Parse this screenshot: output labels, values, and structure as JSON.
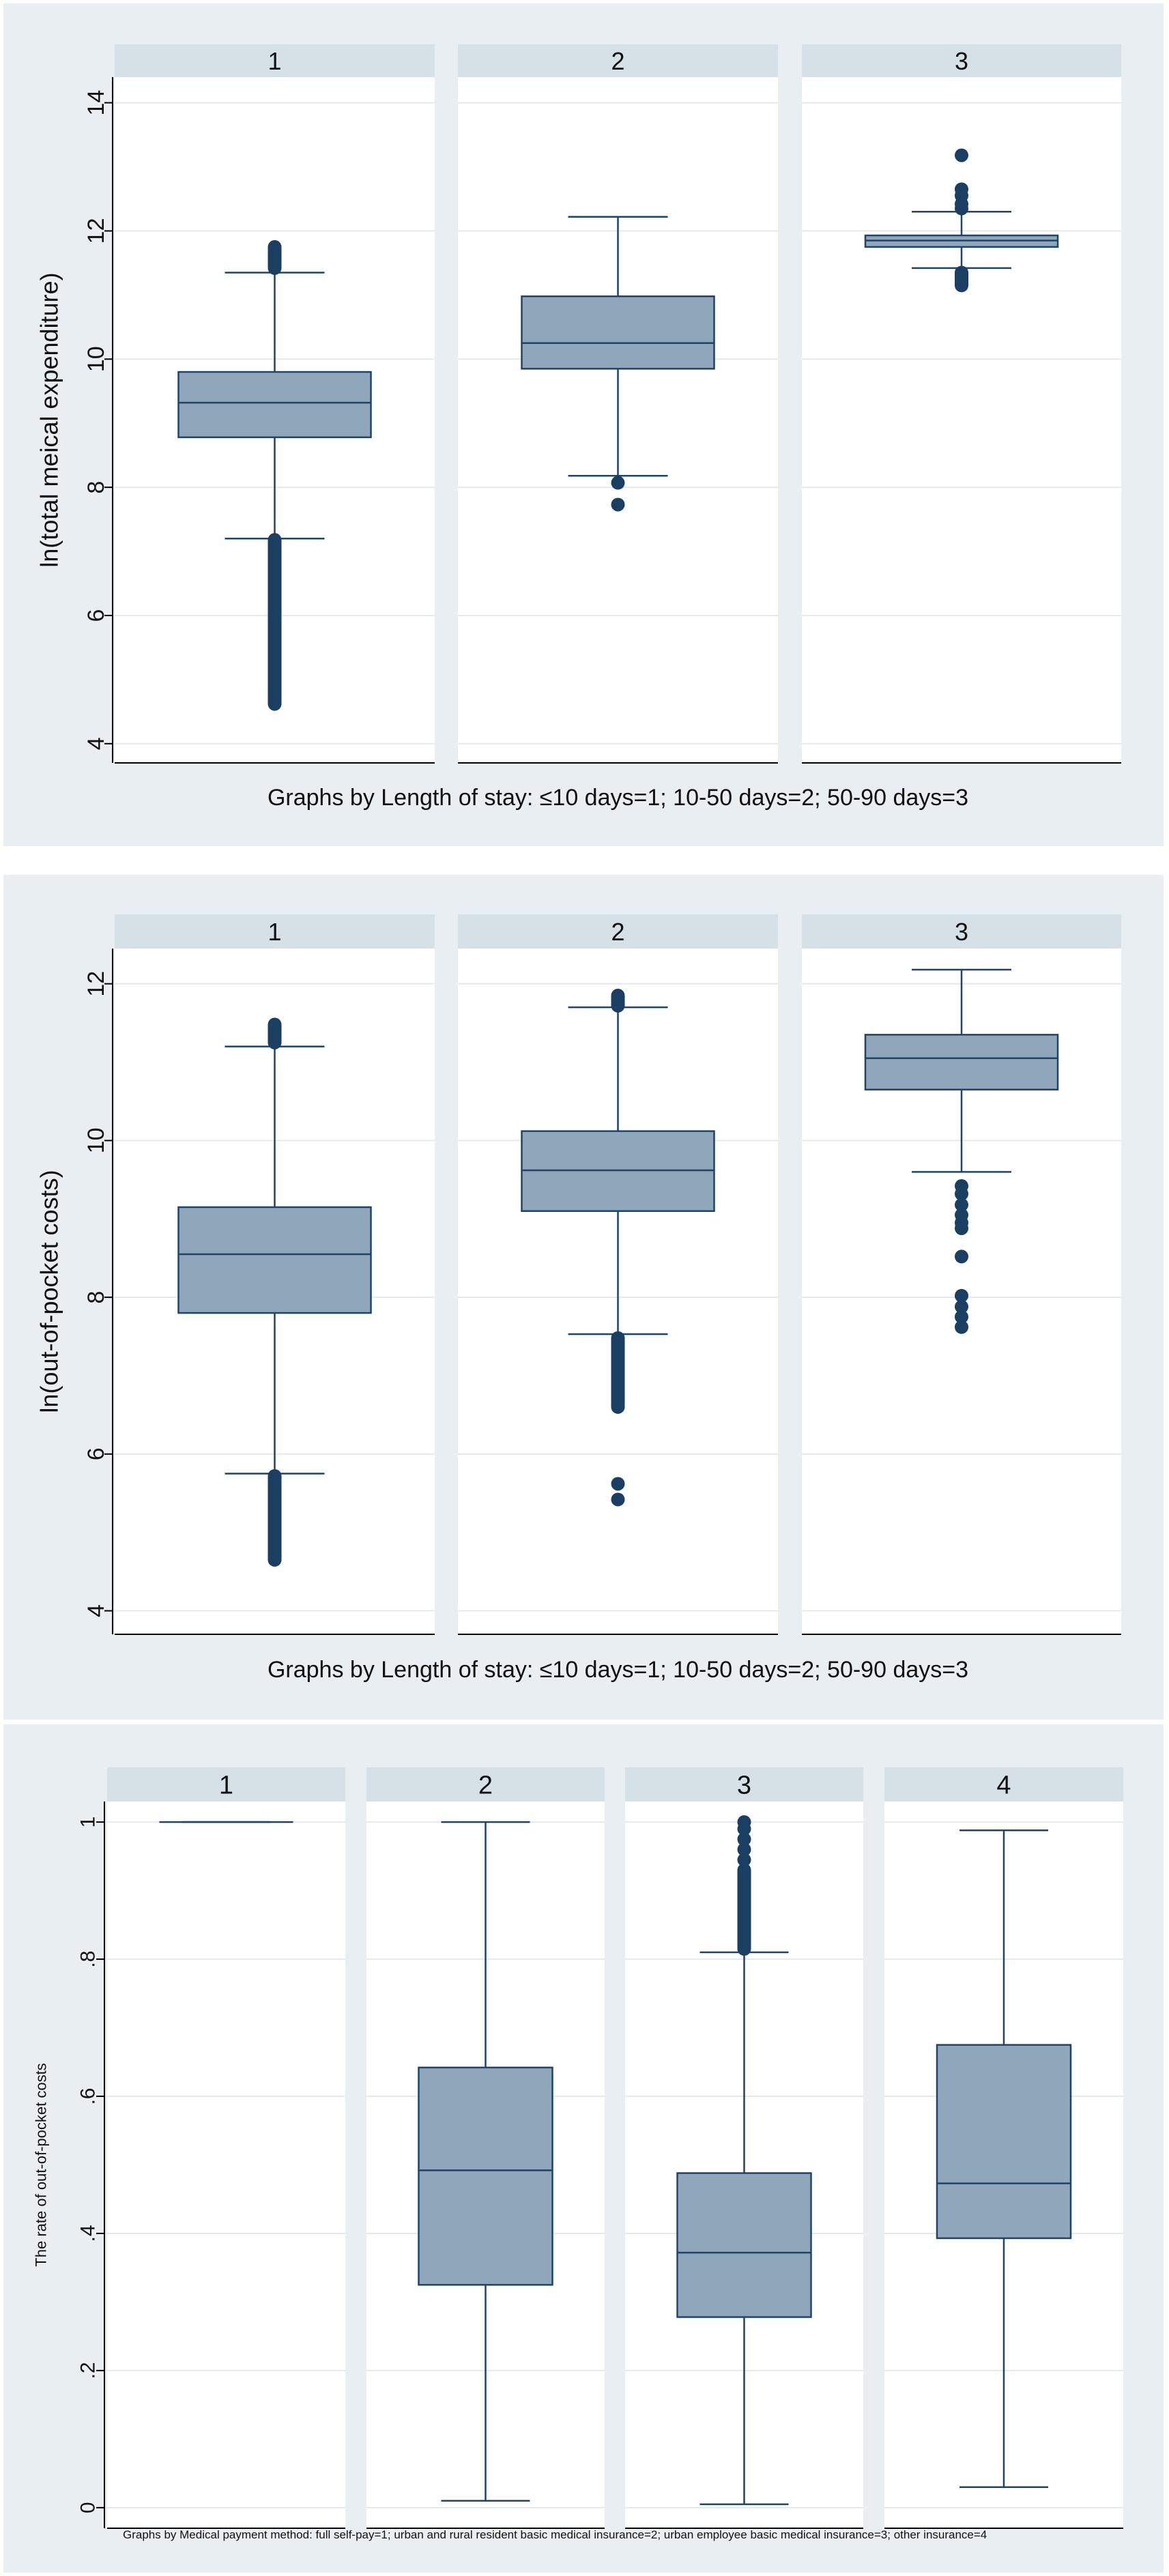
{
  "colors": {
    "panel_bg": "#e8eef2",
    "plot_bg": "#ffffff",
    "strip_bg": "#d6e0e7",
    "box_fill": "#8fa6bb",
    "box_line": "#1e4468",
    "outlier": "#1a3f63",
    "axis": "#000000",
    "grid": "#e4e9ee"
  },
  "chart_data": [
    {
      "type": "box",
      "ylabel": "ln(total meical expenditure)",
      "ylim": [
        3.7,
        14.4
      ],
      "yticks": [
        4,
        6,
        8,
        10,
        12,
        14
      ],
      "ytick_labels": [
        "4",
        "6",
        "8",
        "10",
        "12",
        "14"
      ],
      "note": "Graphs by Length of stay: ≤10 days=1; 10-50 days=2; 50-90 days=3",
      "groups": [
        {
          "label": "1",
          "whisker_low": 7.2,
          "q1": 8.78,
          "median": 9.32,
          "q3": 9.8,
          "whisker_high": 11.35,
          "outliers_low_range": [
            4.62,
            7.18
          ],
          "outliers_high_range": [
            11.42,
            11.75
          ],
          "outliers": []
        },
        {
          "label": "2",
          "whisker_low": 8.18,
          "q1": 9.85,
          "median": 10.25,
          "q3": 10.98,
          "whisker_high": 12.22,
          "outliers_low_range": null,
          "outliers_high_range": null,
          "outliers": [
            8.07,
            7.73
          ]
        },
        {
          "label": "3",
          "whisker_low": 11.42,
          "q1": 11.75,
          "median": 11.85,
          "q3": 11.93,
          "whisker_high": 12.3,
          "outliers_low_range": [
            11.15,
            11.35
          ],
          "outliers_high_range": null,
          "outliers": [
            12.35,
            12.42,
            12.55,
            12.65,
            13.18
          ]
        }
      ]
    },
    {
      "type": "box",
      "ylabel": "ln(out-of-pocket costs)",
      "ylim": [
        3.7,
        12.45
      ],
      "yticks": [
        4,
        6,
        8,
        10,
        12
      ],
      "ytick_labels": [
        "4",
        "6",
        "8",
        "10",
        "12"
      ],
      "note": "Graphs by Length of stay: ≤10 days=1; 10-50 days=2; 50-90 days=3",
      "groups": [
        {
          "label": "1",
          "whisker_low": 5.75,
          "q1": 7.8,
          "median": 8.55,
          "q3": 9.15,
          "whisker_high": 11.2,
          "outliers_low_range": [
            4.65,
            5.72
          ],
          "outliers_high_range": [
            11.25,
            11.48
          ],
          "outliers": []
        },
        {
          "label": "2",
          "whisker_low": 7.53,
          "q1": 9.1,
          "median": 9.62,
          "q3": 10.12,
          "whisker_high": 11.7,
          "outliers_low_range": [
            6.6,
            7.48
          ],
          "outliers_high_range": [
            11.72,
            11.85
          ],
          "outliers": [
            5.62,
            5.42
          ]
        },
        {
          "label": "3",
          "whisker_low": 9.6,
          "q1": 10.65,
          "median": 11.05,
          "q3": 11.35,
          "whisker_high": 12.18,
          "outliers_low_range": null,
          "outliers_high_range": null,
          "outliers": [
            9.42,
            9.32,
            9.18,
            9.05,
            8.95,
            8.88,
            8.52,
            8.02,
            7.88,
            7.75,
            7.62
          ]
        }
      ]
    },
    {
      "type": "box",
      "ylabel": "The rate of out-of-pocket costs",
      "ylim": [
        -0.03,
        1.03
      ],
      "yticks": [
        0,
        0.2,
        0.4,
        0.6,
        0.8,
        1
      ],
      "ytick_labels": [
        "0",
        ".2",
        ".4",
        ".6",
        ".8",
        "1"
      ],
      "note": "Graphs by Medical payment method: full self-pay=1; urban and rural resident basic medical insurance=2; urban employee basic medical insurance=3; other insurance=4",
      "groups": [
        {
          "label": "1",
          "whisker_low": 1,
          "q1": 1,
          "median": 1,
          "q3": 1,
          "whisker_high": 1,
          "outliers_low_range": null,
          "outliers_high_range": null,
          "outliers": []
        },
        {
          "label": "2",
          "whisker_low": 0.01,
          "q1": 0.325,
          "median": 0.492,
          "q3": 0.642,
          "whisker_high": 1.0,
          "outliers_low_range": null,
          "outliers_high_range": null,
          "outliers": []
        },
        {
          "label": "3",
          "whisker_low": 0.005,
          "q1": 0.278,
          "median": 0.372,
          "q3": 0.488,
          "whisker_high": 0.81,
          "outliers_low_range": [
            0.815,
            0.93
          ],
          "outliers_high_range": null,
          "outliers": [
            0.945,
            0.96,
            0.975,
            0.99,
            1.0
          ]
        },
        {
          "label": "4",
          "whisker_low": 0.03,
          "q1": 0.393,
          "median": 0.473,
          "q3": 0.675,
          "whisker_high": 0.988,
          "outliers_low_range": null,
          "outliers_high_range": null,
          "outliers": []
        }
      ]
    }
  ]
}
